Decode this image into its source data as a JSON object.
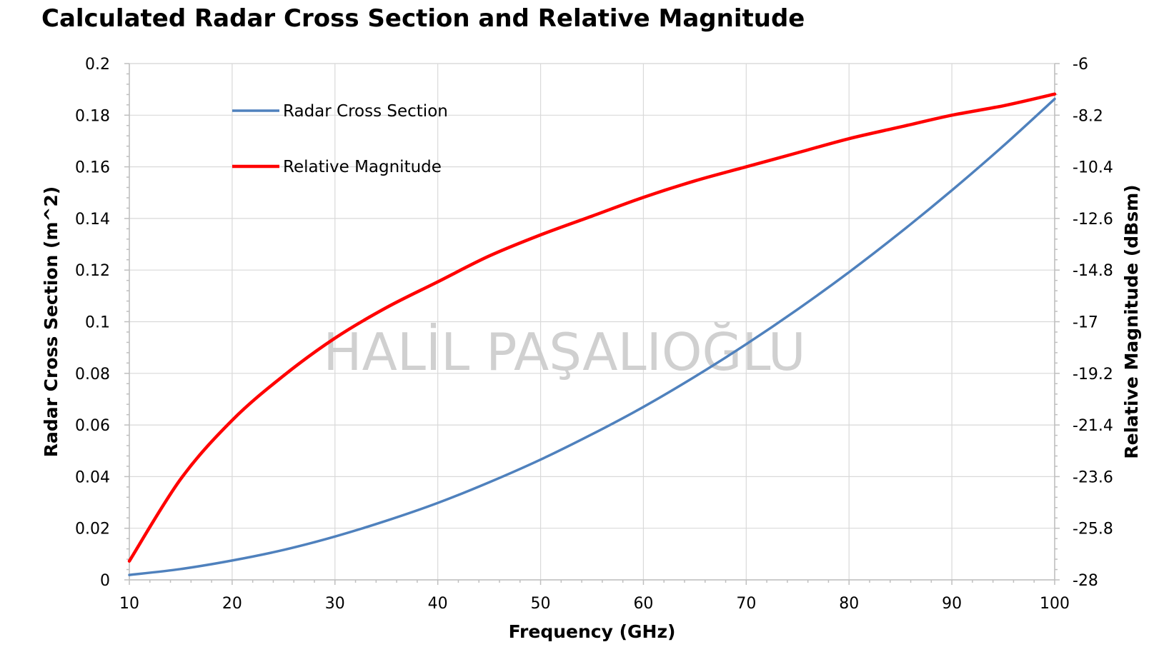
{
  "chart_data": {
    "type": "line",
    "title": "Calculated Radar Cross Section and Relative Magnitude",
    "xlabel": "Frequency (GHz)",
    "ylabel": "Radar Cross Section (m^2)",
    "y2label": "Relative Magnitude (dBsm)",
    "xlim": [
      10,
      100
    ],
    "ylim": [
      0,
      0.2
    ],
    "y2lim": [
      -28,
      -6
    ],
    "x_ticks": [
      "10",
      "20",
      "30",
      "40",
      "50",
      "60",
      "70",
      "80",
      "90",
      "100"
    ],
    "y_ticks": [
      "0",
      "0.02",
      "0.04",
      "0.06",
      "0.08",
      "0.1",
      "0.12",
      "0.14",
      "0.16",
      "0.18",
      "0.2"
    ],
    "y2_ticks": [
      "-28",
      "-25.8",
      "-23.6",
      "-21.4",
      "-19.2",
      "-17",
      "-14.8",
      "-12.6",
      "-10.4",
      "-8.2",
      "-6"
    ],
    "grid": true,
    "legend_position": "top-left",
    "watermark": "HALİL PAŞALIOĞLU",
    "series": [
      {
        "name": "Radar Cross Section",
        "axis": "left",
        "color": "#4f81bd",
        "x": [
          10,
          15,
          20,
          25,
          30,
          35,
          40,
          45,
          50,
          55,
          60,
          65,
          70,
          75,
          80,
          85,
          90,
          95,
          100
        ],
        "values": [
          0.0019,
          0.0042,
          0.0075,
          0.0116,
          0.0168,
          0.0229,
          0.0298,
          0.0378,
          0.0466,
          0.0564,
          0.067,
          0.0787,
          0.0913,
          0.1048,
          0.1192,
          0.1346,
          0.1509,
          0.1681,
          0.1863
        ]
      },
      {
        "name": "Relative Magnitude",
        "axis": "right",
        "color": "#ff0000",
        "x": [
          10,
          15,
          20,
          25,
          30,
          35,
          40,
          45,
          50,
          55,
          60,
          65,
          70,
          75,
          80,
          85,
          90,
          95,
          100
        ],
        "values": [
          -27.2,
          -23.7,
          -21.2,
          -19.3,
          -17.7,
          -16.4,
          -15.3,
          -14.2,
          -13.3,
          -12.5,
          -11.7,
          -11.0,
          -10.4,
          -9.8,
          -9.2,
          -8.7,
          -8.2,
          -7.8,
          -7.3
        ]
      }
    ]
  }
}
